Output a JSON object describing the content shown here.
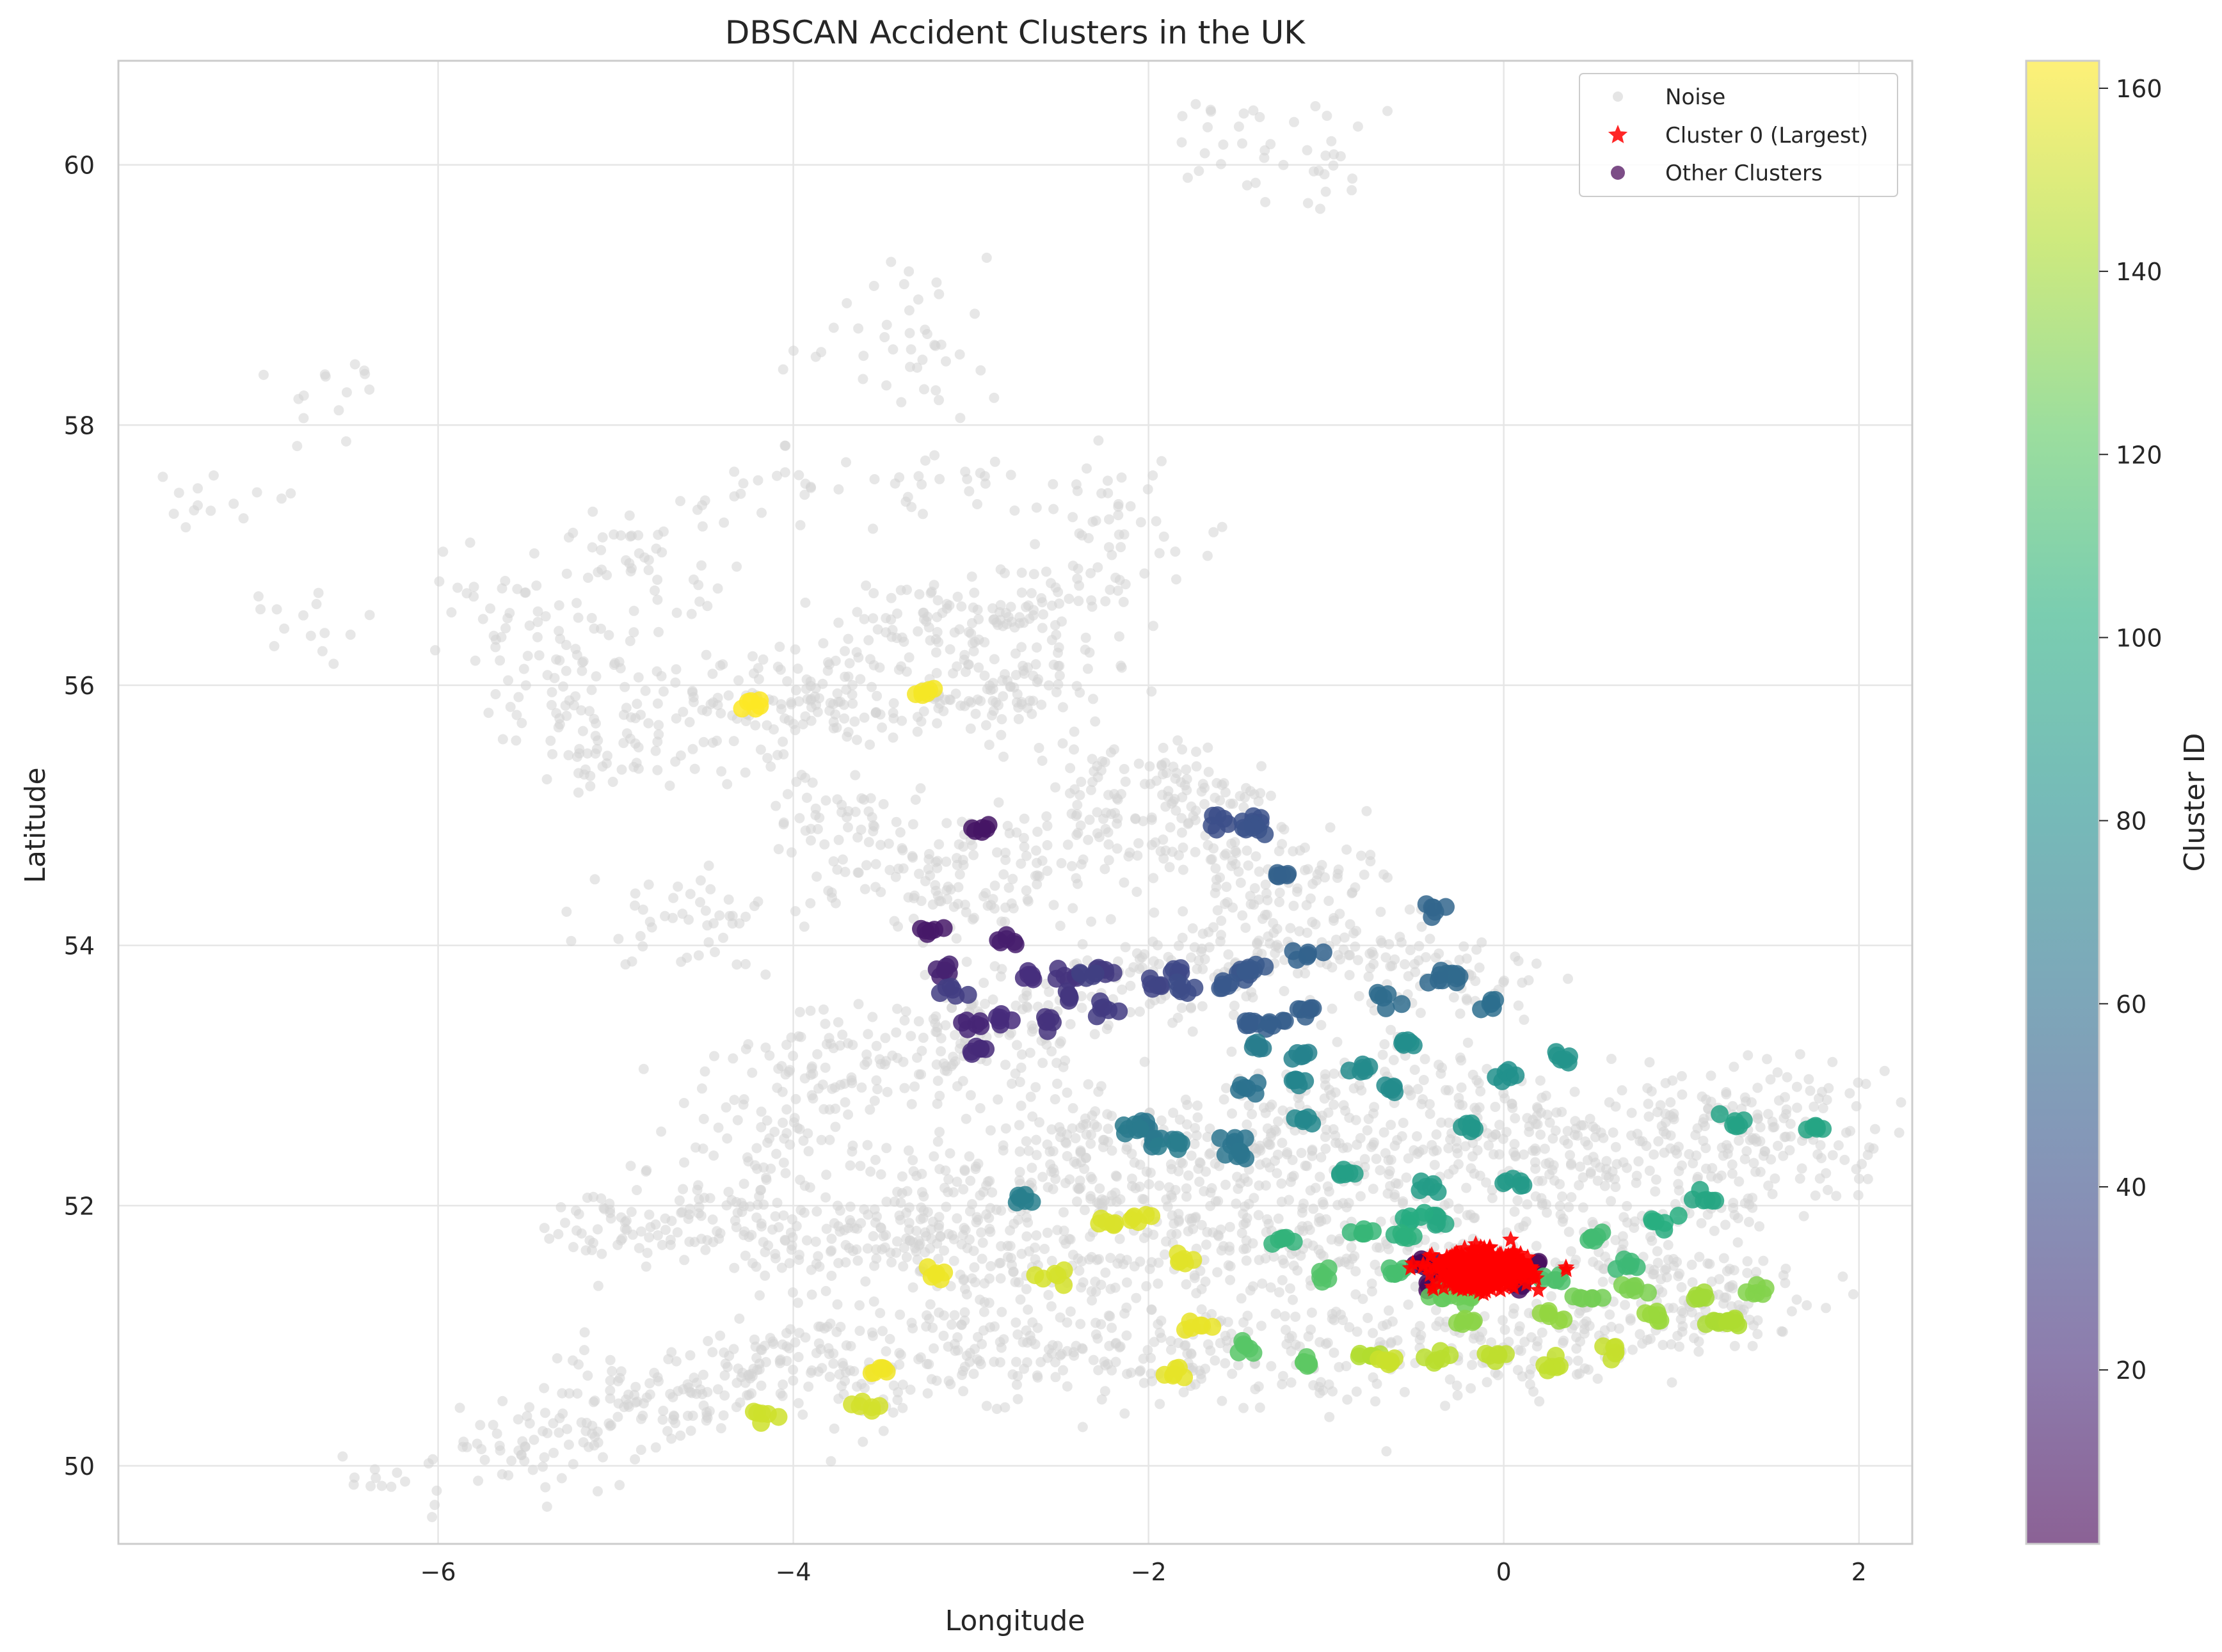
{
  "chart_data": {
    "type": "scatter",
    "title": "DBSCAN Accident Clusters in the UK",
    "xlabel": "Longitude",
    "ylabel": "Latitude",
    "xlim": [
      -7.8,
      2.3
    ],
    "ylim": [
      49.4,
      60.8
    ],
    "xticks": [
      -6,
      -4,
      -2,
      0,
      2
    ],
    "yticks": [
      50,
      52,
      54,
      56,
      58,
      60
    ],
    "grid": true,
    "legend_position": "top-right",
    "legend": [
      "Noise",
      "Cluster 0 (Largest)",
      "Other Clusters"
    ],
    "colorbar": {
      "label": "Cluster ID",
      "range": [
        1,
        163
      ],
      "ticks": [
        20,
        40,
        60,
        80,
        100,
        120,
        140,
        160
      ],
      "colormap": "viridis"
    },
    "colors": {
      "noise": "#d3d3d3",
      "largest": "#ff0000"
    },
    "series": [
      {
        "name": "Noise",
        "description_points": [
          [
            -5.6,
            50.1
          ],
          [
            -5.3,
            50.2
          ],
          [
            -5.0,
            50.4
          ],
          [
            -4.6,
            50.6
          ],
          [
            -4.2,
            50.8
          ],
          [
            -3.8,
            50.9
          ],
          [
            -3.5,
            50.7
          ],
          [
            -3.0,
            50.8
          ],
          [
            -2.5,
            50.9
          ],
          [
            -2.0,
            50.8
          ],
          [
            -1.5,
            50.9
          ],
          [
            -1.0,
            50.85
          ],
          [
            -0.5,
            50.9
          ],
          [
            0.0,
            50.85
          ],
          [
            0.5,
            51.0
          ],
          [
            1.0,
            51.2
          ],
          [
            1.3,
            51.3
          ],
          [
            0.8,
            51.5
          ],
          [
            0.3,
            51.6
          ],
          [
            -0.3,
            51.7
          ],
          [
            -0.8,
            51.6
          ],
          [
            -1.3,
            51.7
          ],
          [
            -1.8,
            51.6
          ],
          [
            -2.3,
            51.5
          ],
          [
            -2.8,
            51.5
          ],
          [
            -3.2,
            51.6
          ],
          [
            -3.6,
            51.7
          ],
          [
            -4.0,
            51.8
          ],
          [
            -4.5,
            51.8
          ],
          [
            -5.0,
            51.8
          ],
          [
            -4.2,
            52.3
          ],
          [
            -4.0,
            52.8
          ],
          [
            -3.8,
            53.2
          ],
          [
            -3.3,
            53.3
          ],
          [
            -3.0,
            53.0
          ],
          [
            -2.5,
            52.6
          ],
          [
            -2.0,
            52.4
          ],
          [
            -1.5,
            52.6
          ],
          [
            -1.0,
            52.8
          ],
          [
            -0.5,
            53.0
          ],
          [
            0.0,
            52.7
          ],
          [
            0.5,
            52.6
          ],
          [
            1.0,
            52.7
          ],
          [
            1.5,
            52.8
          ],
          [
            1.7,
            52.5
          ],
          [
            1.3,
            52.2
          ],
          [
            0.8,
            52.0
          ],
          [
            0.2,
            52.2
          ],
          [
            -0.3,
            52.4
          ],
          [
            -0.8,
            52.3
          ],
          [
            -1.3,
            52.2
          ],
          [
            -1.8,
            52.0
          ],
          [
            -2.3,
            52.2
          ],
          [
            -2.8,
            52.2
          ],
          [
            -3.2,
            52.0
          ],
          [
            -2.7,
            53.5
          ],
          [
            -2.2,
            53.7
          ],
          [
            -1.7,
            53.9
          ],
          [
            -1.2,
            54.0
          ],
          [
            -0.7,
            53.9
          ],
          [
            -0.3,
            53.7
          ],
          [
            -1.0,
            54.5
          ],
          [
            -1.5,
            54.6
          ],
          [
            -1.7,
            55.0
          ],
          [
            -2.0,
            55.3
          ],
          [
            -2.3,
            55.0
          ],
          [
            -2.7,
            54.6
          ],
          [
            -3.0,
            54.4
          ],
          [
            -3.4,
            54.6
          ],
          [
            -3.8,
            55.0
          ],
          [
            -4.3,
            55.9
          ],
          [
            -4.0,
            55.8
          ],
          [
            -3.5,
            55.9
          ],
          [
            -3.0,
            55.9
          ],
          [
            -2.7,
            56.0
          ],
          [
            -3.3,
            56.4
          ],
          [
            -3.0,
            56.5
          ],
          [
            -2.5,
            56.6
          ],
          [
            -2.2,
            57.1
          ],
          [
            -3.5,
            57.4
          ],
          [
            -4.2,
            57.5
          ],
          [
            -4.8,
            57.0
          ],
          [
            -5.3,
            56.4
          ],
          [
            -5.8,
            56.8
          ],
          [
            -6.5,
            58.2
          ],
          [
            -7.2,
            57.4
          ],
          [
            -3.2,
            58.4
          ],
          [
            -3.3,
            59.0
          ],
          [
            -1.2,
            60.2
          ],
          [
            -1.6,
            60.2
          ],
          [
            -2.0,
            57.2
          ],
          [
            -2.3,
            57.6
          ],
          [
            -3.0,
            57.6
          ],
          [
            -4.9,
            55.5
          ],
          [
            -5.2,
            55.8
          ],
          [
            -6.3,
            49.9
          ],
          [
            -4.6,
            54.2
          ],
          [
            -6.8,
            56.5
          ],
          [
            -3.6,
            58.6
          ],
          [
            -1.1,
            59.9
          ]
        ]
      },
      {
        "name": "Cluster 0 (Largest)",
        "center": [
          -0.12,
          51.5
        ],
        "spread": [
          0.22,
          0.12
        ],
        "points": 420
      },
      {
        "name": "Other Clusters",
        "points": [
          [
            -0.45,
            51.55,
            2
          ],
          [
            -0.3,
            51.45,
            3
          ],
          [
            0.05,
            51.45,
            4
          ],
          [
            0.15,
            51.55,
            5
          ],
          [
            -0.4,
            51.4,
            6
          ],
          [
            0.1,
            51.4,
            8
          ],
          [
            -2.95,
            54.9,
            10
          ],
          [
            -3.25,
            54.1,
            12
          ],
          [
            -2.8,
            54.05,
            14
          ],
          [
            -3.15,
            53.8,
            16
          ],
          [
            -3.0,
            53.4,
            18
          ],
          [
            -2.95,
            53.2,
            20
          ],
          [
            -2.85,
            53.45,
            21
          ],
          [
            -2.7,
            53.75,
            22
          ],
          [
            -2.6,
            53.4,
            24
          ],
          [
            -2.45,
            53.75,
            25
          ],
          [
            -2.45,
            53.6,
            26
          ],
          [
            -2.25,
            53.8,
            28
          ],
          [
            -2.25,
            53.5,
            29
          ],
          [
            -3.1,
            53.65,
            30
          ],
          [
            -2.35,
            53.75,
            31
          ],
          [
            -2.0,
            53.7,
            34
          ],
          [
            -1.85,
            53.8,
            36
          ],
          [
            -1.8,
            53.65,
            38
          ],
          [
            -1.6,
            54.95,
            40
          ],
          [
            -1.45,
            54.95,
            41
          ],
          [
            -1.4,
            54.9,
            42
          ],
          [
            -1.5,
            53.8,
            44
          ],
          [
            -1.55,
            53.7,
            45
          ],
          [
            -1.4,
            53.8,
            46
          ],
          [
            -1.45,
            53.4,
            48
          ],
          [
            -1.3,
            53.4,
            49
          ],
          [
            -1.1,
            53.5,
            50
          ],
          [
            -1.25,
            54.55,
            51
          ],
          [
            -1.1,
            53.95,
            52
          ],
          [
            -0.4,
            54.28,
            54
          ],
          [
            -0.35,
            53.75,
            56
          ],
          [
            -0.25,
            53.75,
            57
          ],
          [
            -0.65,
            53.6,
            58
          ],
          [
            -0.1,
            53.55,
            60
          ],
          [
            -1.45,
            52.9,
            62
          ],
          [
            -1.5,
            52.5,
            63
          ],
          [
            -1.5,
            52.4,
            64
          ],
          [
            -2.0,
            52.6,
            65
          ],
          [
            -1.95,
            52.5,
            66
          ],
          [
            -2.1,
            52.58,
            67
          ],
          [
            -1.85,
            52.5,
            68
          ],
          [
            -1.4,
            53.25,
            69
          ],
          [
            -2.7,
            52.05,
            70
          ],
          [
            -1.15,
            53.15,
            72
          ],
          [
            -1.15,
            52.95,
            74
          ],
          [
            -1.1,
            52.65,
            76
          ],
          [
            -0.8,
            53.05,
            78
          ],
          [
            -0.6,
            52.9,
            79
          ],
          [
            -0.55,
            53.25,
            80
          ],
          [
            0.0,
            53.0,
            82
          ],
          [
            0.35,
            53.15,
            84
          ],
          [
            -0.2,
            52.6,
            86
          ],
          [
            0.1,
            52.2,
            88
          ],
          [
            -0.45,
            52.15,
            90
          ],
          [
            -0.9,
            52.25,
            92
          ],
          [
            1.3,
            52.65,
            94
          ],
          [
            1.75,
            52.6,
            96
          ],
          [
            1.15,
            52.05,
            97
          ],
          [
            -0.4,
            51.9,
            98
          ],
          [
            -0.5,
            51.9,
            100
          ],
          [
            0.9,
            51.9,
            102
          ],
          [
            -0.55,
            51.75,
            104
          ],
          [
            -1.25,
            51.75,
            106
          ],
          [
            -0.8,
            51.8,
            108
          ],
          [
            0.7,
            51.55,
            110
          ],
          [
            0.5,
            51.75,
            112
          ],
          [
            -0.6,
            51.5,
            114
          ],
          [
            0.3,
            51.45,
            116
          ],
          [
            -1.0,
            51.45,
            118
          ],
          [
            -1.45,
            50.9,
            120
          ],
          [
            -1.1,
            50.8,
            122
          ],
          [
            -0.35,
            51.3,
            124
          ],
          [
            -0.2,
            51.3,
            126
          ],
          [
            0.5,
            51.3,
            128
          ],
          [
            0.75,
            51.35,
            130
          ],
          [
            1.4,
            51.35,
            132
          ],
          [
            -0.2,
            51.1,
            134
          ],
          [
            0.25,
            51.15,
            136
          ],
          [
            0.85,
            51.15,
            138
          ],
          [
            1.1,
            51.3,
            140
          ],
          [
            1.2,
            51.1,
            142
          ],
          [
            1.3,
            51.1,
            143
          ],
          [
            -0.75,
            50.85,
            144
          ],
          [
            -0.35,
            50.83,
            146
          ],
          [
            -0.05,
            50.83,
            147
          ],
          [
            0.3,
            50.78,
            148
          ],
          [
            0.6,
            50.87,
            149
          ],
          [
            -0.65,
            50.8,
            150
          ],
          [
            -4.15,
            50.4,
            151
          ],
          [
            -3.55,
            50.45,
            152
          ],
          [
            -2.55,
            51.45,
            153
          ],
          [
            -2.25,
            51.88,
            154
          ],
          [
            -2.05,
            51.9,
            155
          ],
          [
            -1.8,
            51.6,
            156
          ],
          [
            -1.85,
            50.72,
            157
          ],
          [
            -1.75,
            51.07,
            158
          ],
          [
            -3.2,
            51.48,
            159
          ],
          [
            -3.5,
            50.72,
            160
          ],
          [
            -3.25,
            55.95,
            161
          ],
          [
            -4.25,
            55.87,
            163
          ]
        ]
      }
    ]
  }
}
